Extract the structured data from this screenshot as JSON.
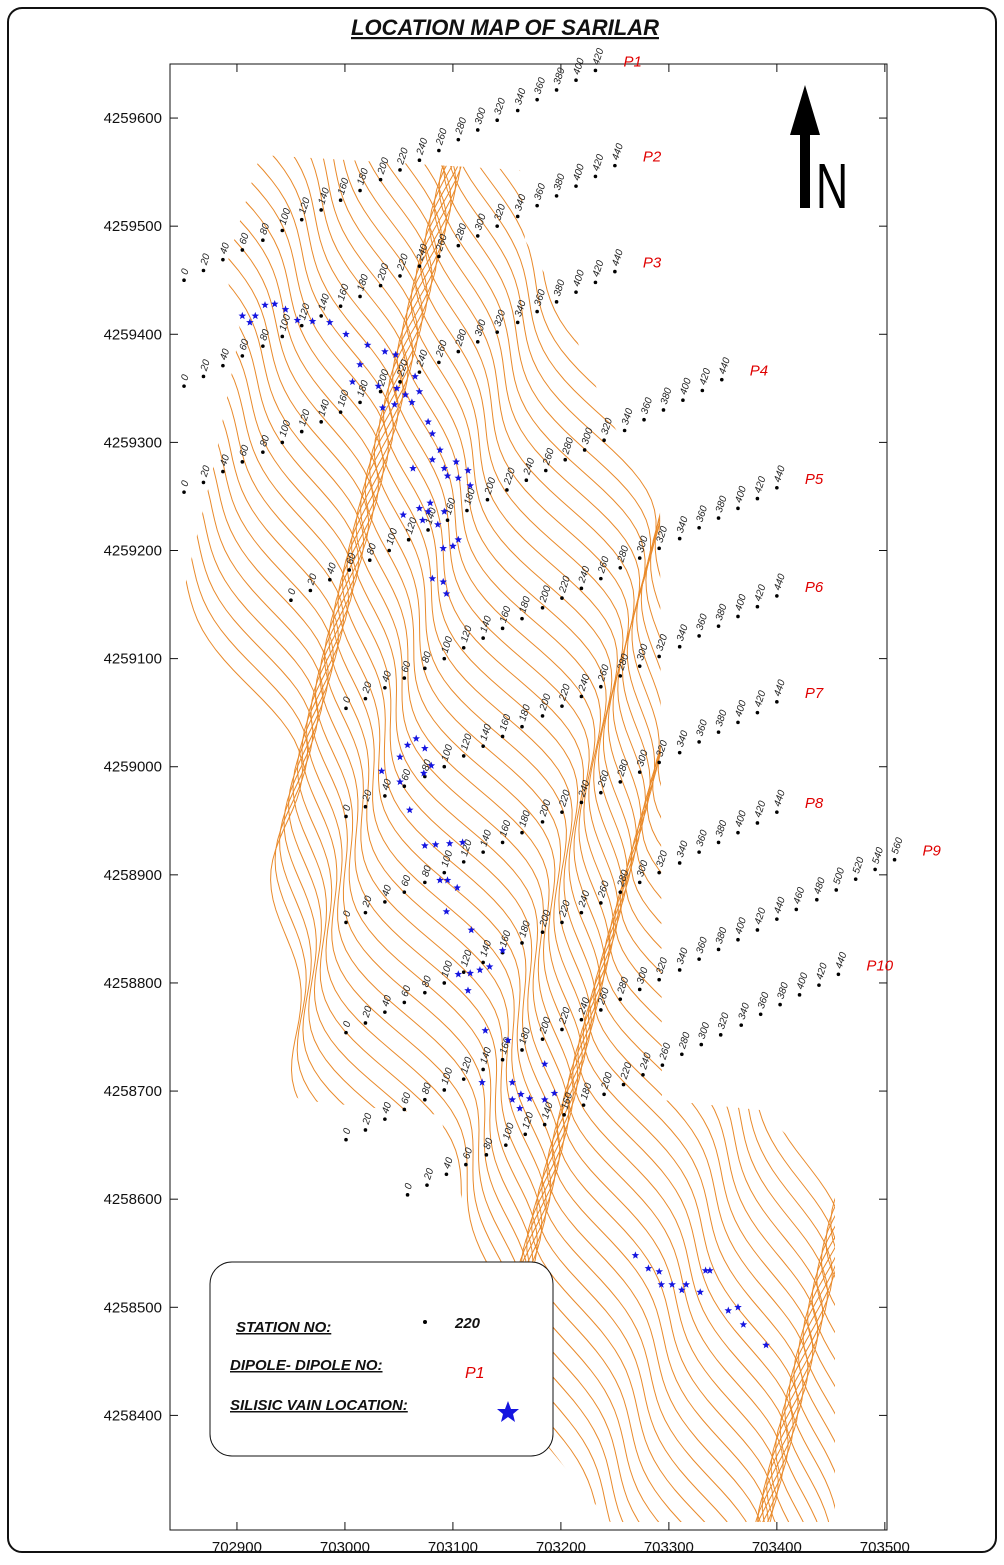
{
  "title": "LOCATION MAP OF SARILAR",
  "map": {
    "type": "map",
    "xlim": [
      702838,
      703502
    ],
    "ylim": [
      4258294,
      4259650
    ],
    "xticks": [
      702900,
      703000,
      703100,
      703200,
      703300,
      703400,
      703500
    ],
    "yticks": [
      4258400,
      4258500,
      4258600,
      4258700,
      4258800,
      4258900,
      4259000,
      4259100,
      4259200,
      4259300,
      4259400,
      4259500,
      4259600
    ],
    "colors": {
      "contour": "#e98a2b",
      "profile": "#e00000",
      "vein": "#1515e0",
      "station": "#000000"
    },
    "north": "N",
    "profiles": [
      {
        "name": "P1",
        "stations": [
          0,
          20,
          40,
          60,
          80,
          100,
          120,
          140,
          160,
          180,
          200,
          220,
          240,
          260,
          280,
          300,
          320,
          340,
          360,
          380,
          400,
          420
        ],
        "x": [
          702851,
          702869,
          702887,
          702905,
          702924,
          702942,
          702960,
          702978,
          702996,
          703014,
          703033,
          703051,
          703069,
          703087,
          703105,
          703123,
          703141,
          703160,
          703178,
          703196,
          703214,
          703232
        ],
        "y": [
          4259450,
          4259459,
          4259469,
          4259478,
          4259487,
          4259496,
          4259506,
          4259515,
          4259524,
          4259533,
          4259543,
          4259552,
          4259561,
          4259570,
          4259580,
          4259589,
          4259598,
          4259607,
          4259617,
          4259626,
          4259635,
          4259644
        ]
      },
      {
        "name": "P2",
        "stations": [
          0,
          20,
          40,
          60,
          80,
          100,
          120,
          140,
          160,
          180,
          200,
          220,
          240,
          260,
          280,
          300,
          320,
          340,
          360,
          380,
          400,
          420,
          440
        ],
        "x": [
          702851,
          702869,
          702887,
          702905,
          702924,
          702942,
          702960,
          702978,
          702996,
          703014,
          703033,
          703051,
          703069,
          703087,
          703105,
          703123,
          703141,
          703160,
          703178,
          703196,
          703214,
          703232,
          703250
        ],
        "y": [
          4259352,
          4259361,
          4259371,
          4259380,
          4259389,
          4259398,
          4259408,
          4259417,
          4259426,
          4259435,
          4259445,
          4259454,
          4259463,
          4259472,
          4259482,
          4259491,
          4259500,
          4259509,
          4259519,
          4259528,
          4259537,
          4259546,
          4259556
        ]
      },
      {
        "name": "P3",
        "stations": [
          0,
          20,
          40,
          60,
          80,
          100,
          120,
          140,
          160,
          180,
          200,
          220,
          240,
          260,
          280,
          300,
          320,
          340,
          360,
          380,
          400,
          420,
          440
        ],
        "x": [
          702851,
          702869,
          702887,
          702905,
          702924,
          702942,
          702960,
          702978,
          702996,
          703014,
          703033,
          703051,
          703069,
          703087,
          703105,
          703123,
          703141,
          703160,
          703178,
          703196,
          703214,
          703232,
          703250
        ],
        "y": [
          4259254,
          4259263,
          4259273,
          4259282,
          4259291,
          4259300,
          4259310,
          4259319,
          4259328,
          4259337,
          4259347,
          4259356,
          4259365,
          4259374,
          4259384,
          4259393,
          4259402,
          4259411,
          4259421,
          4259430,
          4259439,
          4259448,
          4259458
        ]
      },
      {
        "name": "P4",
        "stations": [
          0,
          20,
          40,
          60,
          80,
          100,
          120,
          140,
          160,
          180,
          200,
          220,
          240,
          260,
          280,
          300,
          320,
          340,
          360,
          380,
          400,
          420,
          440
        ],
        "x": [
          702950,
          702968,
          702986,
          703004,
          703023,
          703041,
          703059,
          703077,
          703095,
          703113,
          703132,
          703150,
          703168,
          703186,
          703204,
          703222,
          703240,
          703259,
          703277,
          703295,
          703313,
          703331,
          703349
        ],
        "y": [
          4259154,
          4259163,
          4259173,
          4259182,
          4259191,
          4259200,
          4259210,
          4259219,
          4259228,
          4259237,
          4259247,
          4259256,
          4259265,
          4259274,
          4259284,
          4259293,
          4259302,
          4259311,
          4259321,
          4259330,
          4259339,
          4259348,
          4259358
        ]
      },
      {
        "name": "P5",
        "stations": [
          0,
          20,
          40,
          60,
          80,
          100,
          120,
          140,
          160,
          180,
          200,
          220,
          240,
          260,
          280,
          300,
          320,
          340,
          360,
          380,
          400,
          420,
          440
        ],
        "x": [
          703001,
          703019,
          703037,
          703055,
          703074,
          703092,
          703110,
          703128,
          703146,
          703164,
          703183,
          703201,
          703219,
          703237,
          703255,
          703273,
          703291,
          703310,
          703328,
          703346,
          703364,
          703382,
          703400
        ],
        "y": [
          4259054,
          4259063,
          4259073,
          4259082,
          4259091,
          4259100,
          4259110,
          4259119,
          4259128,
          4259137,
          4259147,
          4259156,
          4259165,
          4259174,
          4259184,
          4259193,
          4259202,
          4259211,
          4259221,
          4259230,
          4259239,
          4259248,
          4259258
        ]
      },
      {
        "name": "P6",
        "stations": [
          0,
          20,
          40,
          60,
          80,
          100,
          120,
          140,
          160,
          180,
          200,
          220,
          240,
          260,
          280,
          300,
          320,
          340,
          360,
          380,
          400,
          420,
          440
        ],
        "x": [
          703001,
          703019,
          703037,
          703055,
          703074,
          703092,
          703110,
          703128,
          703146,
          703164,
          703183,
          703201,
          703219,
          703237,
          703255,
          703273,
          703291,
          703310,
          703328,
          703346,
          703364,
          703382,
          703400
        ],
        "y": [
          4258954,
          4258963,
          4258973,
          4258982,
          4258991,
          4259000,
          4259010,
          4259019,
          4259028,
          4259037,
          4259047,
          4259056,
          4259065,
          4259074,
          4259084,
          4259093,
          4259102,
          4259111,
          4259121,
          4259130,
          4259139,
          4259148,
          4259158
        ]
      },
      {
        "name": "P7",
        "stations": [
          0,
          20,
          40,
          60,
          80,
          100,
          120,
          140,
          160,
          180,
          200,
          220,
          240,
          260,
          280,
          300,
          320,
          340,
          360,
          380,
          400,
          420,
          440
        ],
        "x": [
          703001,
          703019,
          703037,
          703055,
          703074,
          703092,
          703110,
          703128,
          703146,
          703164,
          703183,
          703201,
          703219,
          703237,
          703255,
          703273,
          703291,
          703310,
          703328,
          703346,
          703364,
          703382,
          703400
        ],
        "y": [
          4258856,
          4258865,
          4258875,
          4258884,
          4258893,
          4258902,
          4258912,
          4258921,
          4258930,
          4258939,
          4258949,
          4258958,
          4258967,
          4258976,
          4258986,
          4258995,
          4259004,
          4259013,
          4259023,
          4259032,
          4259041,
          4259050,
          4259060
        ]
      },
      {
        "name": "P8",
        "stations": [
          0,
          20,
          40,
          60,
          80,
          100,
          120,
          140,
          160,
          180,
          200,
          220,
          240,
          260,
          280,
          300,
          320,
          340,
          360,
          380,
          400,
          420,
          440
        ],
        "x": [
          703001,
          703019,
          703037,
          703055,
          703074,
          703092,
          703110,
          703128,
          703146,
          703164,
          703183,
          703201,
          703219,
          703237,
          703255,
          703273,
          703291,
          703310,
          703328,
          703346,
          703364,
          703382,
          703400
        ],
        "y": [
          4258754,
          4258763,
          4258773,
          4258782,
          4258791,
          4258800,
          4258810,
          4258819,
          4258828,
          4258837,
          4258847,
          4258856,
          4258865,
          4258874,
          4258884,
          4258893,
          4258902,
          4258911,
          4258921,
          4258930,
          4258939,
          4258948,
          4258958
        ]
      },
      {
        "name": "P9",
        "stations": [
          0,
          20,
          40,
          60,
          80,
          100,
          120,
          140,
          160,
          180,
          200,
          220,
          240,
          260,
          280,
          300,
          320,
          340,
          360,
          380,
          400,
          420,
          440,
          460,
          480,
          500,
          520,
          540,
          560
        ],
        "x": [
          703001,
          703019,
          703037,
          703055,
          703074,
          703092,
          703110,
          703128,
          703146,
          703164,
          703183,
          703201,
          703219,
          703237,
          703255,
          703273,
          703291,
          703310,
          703328,
          703346,
          703364,
          703382,
          703400,
          703418,
          703437,
          703455,
          703473,
          703491,
          703509
        ],
        "y": [
          4258655,
          4258664,
          4258674,
          4258683,
          4258692,
          4258701,
          4258711,
          4258720,
          4258729,
          4258738,
          4258748,
          4258757,
          4258766,
          4258775,
          4258785,
          4258794,
          4258803,
          4258812,
          4258822,
          4258831,
          4258840,
          4258849,
          4258859,
          4258868,
          4258877,
          4258886,
          4258896,
          4258905,
          4258914
        ]
      },
      {
        "name": "P10",
        "stations": [
          0,
          20,
          40,
          60,
          80,
          100,
          120,
          140,
          160,
          180,
          200,
          220,
          240,
          260,
          280,
          300,
          320,
          340,
          360,
          380,
          400,
          420,
          440
        ],
        "x": [
          703058,
          703076,
          703094,
          703112,
          703131,
          703149,
          703167,
          703185,
          703203,
          703221,
          703240,
          703258,
          703276,
          703294,
          703312,
          703330,
          703348,
          703367,
          703385,
          703403,
          703421,
          703439,
          703457
        ],
        "y": [
          4258604,
          4258613,
          4258623,
          4258632,
          4258641,
          4258650,
          4258660,
          4258669,
          4258678,
          4258687,
          4258697,
          4258706,
          4258715,
          4258724,
          4258734,
          4258743,
          4258752,
          4258761,
          4258771,
          4258780,
          4258789,
          4258798,
          4258808
        ]
      }
    ],
    "veins": {
      "x": [
        702905,
        702912,
        702917,
        702926,
        702935,
        702945,
        702956,
        702970,
        702986,
        703001,
        703021,
        703037,
        703047,
        703014,
        703007,
        703031,
        703048,
        703056,
        703062,
        703046,
        703035,
        703065,
        703069,
        703077,
        703081,
        703088,
        703081,
        703063,
        703092,
        703103,
        703114,
        703095,
        703105,
        703116,
        703079,
        703069,
        703077,
        703092,
        703054,
        703072,
        703086,
        703091,
        703100,
        703105,
        703081,
        703091,
        703094,
        703066,
        703058,
        703074,
        703080,
        703051,
        703034,
        703073,
        703051,
        703060,
        703074,
        703084,
        703097,
        703109,
        703088,
        703095,
        703104,
        703094,
        703117,
        703125,
        703116,
        703105,
        703146,
        703134,
        703114,
        703130,
        703151,
        703127,
        703155,
        703163,
        703185,
        703194,
        703185,
        703171,
        703155,
        703162,
        703269,
        703281,
        703291,
        703293,
        703303,
        703312,
        703316,
        703329,
        703334,
        703338,
        703355,
        703364,
        703369,
        703390
      ],
      "y": [
        4259417,
        4259411,
        4259417,
        4259427,
        4259428,
        4259423,
        4259413,
        4259412,
        4259411,
        4259400,
        4259390,
        4259384,
        4259381,
        4259372,
        4259356,
        4259352,
        4259350,
        4259344,
        4259337,
        4259335,
        4259332,
        4259361,
        4259347,
        4259319,
        4259308,
        4259293,
        4259284,
        4259276,
        4259276,
        4259282,
        4259274,
        4259269,
        4259267,
        4259260,
        4259244,
        4259239,
        4259236,
        4259236,
        4259233,
        4259228,
        4259224,
        4259202,
        4259204,
        4259210,
        4259174,
        4259171,
        4259160,
        4259026,
        4259020,
        4259017,
        4259001,
        4259009,
        4258996,
        4258994,
        4258986,
        4258960,
        4258927,
        4258928,
        4258929,
        4258930,
        4258895,
        4258895,
        4258888,
        4258866,
        4258849,
        4258812,
        4258809,
        4258808,
        4258830,
        4258815,
        4258793,
        4258756,
        4258747,
        4258708,
        4258708,
        4258697,
        4258725,
        4258698,
        4258692,
        4258693,
        4258692,
        4258684,
        4258548,
        4258536,
        4258533,
        4258521,
        4258521,
        4258516,
        4258521,
        4258514,
        4258534,
        4258534,
        4258497,
        4258500,
        4258484,
        4258465
      ]
    },
    "legend": {
      "station": "STATION NO:",
      "station_sample": 220,
      "dipole": "DIPOLE- DIPOLE NO:",
      "dipole_sample": "P1",
      "vein": "SILISIC VAIN LOCATION:"
    }
  }
}
